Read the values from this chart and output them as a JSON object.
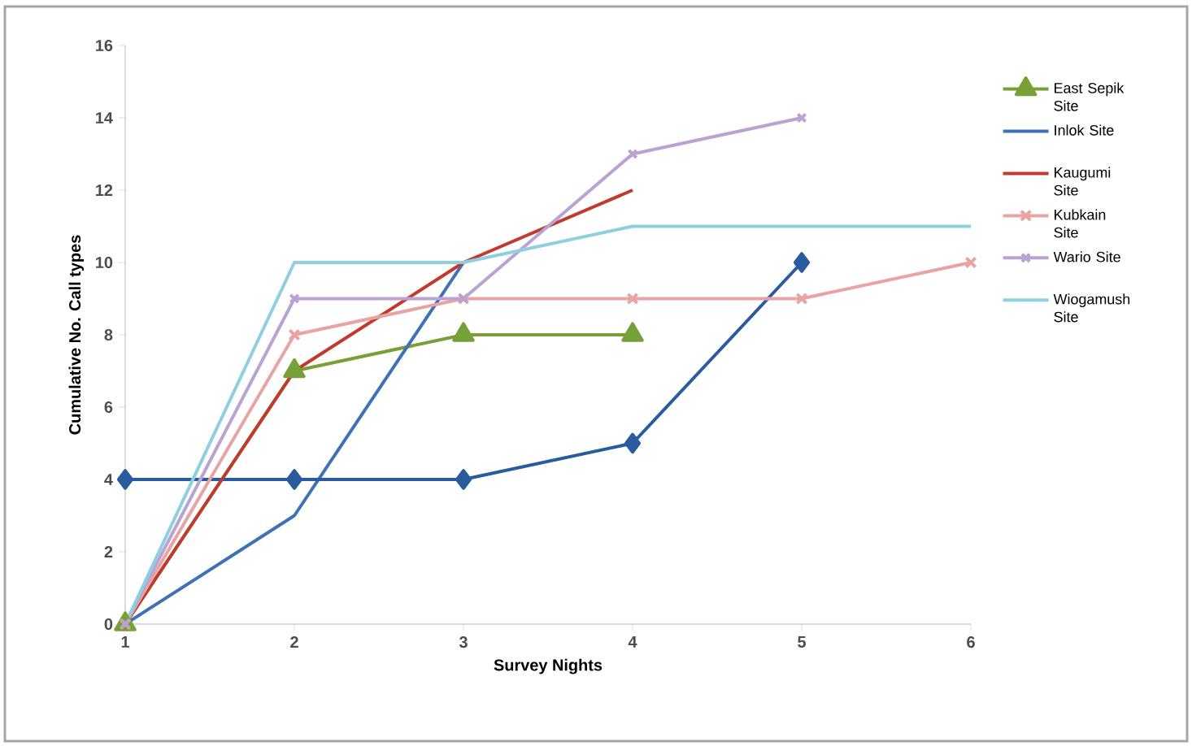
{
  "chart_data": {
    "type": "line",
    "xlabel": "Survey Nights",
    "ylabel": "Cumulative No. Call types",
    "x": [
      1,
      2,
      3,
      4,
      5,
      6
    ],
    "xlim": [
      1,
      6
    ],
    "xticks": [
      1,
      2,
      3,
      4,
      5,
      6
    ],
    "ylim": [
      0,
      16
    ],
    "yticks": [
      0,
      2,
      4,
      6,
      8,
      10,
      12,
      14,
      16
    ],
    "grid": false,
    "legend": "right",
    "line_style": "solid",
    "series": [
      {
        "name": "East Sepik Site",
        "color": "#77a038",
        "marker": "triangle",
        "values": [
          0,
          7,
          8,
          8,
          null,
          null
        ]
      },
      {
        "name": "Inlok Site",
        "color": "#3f72b5",
        "marker": "none",
        "values": [
          0,
          3,
          10,
          null,
          null,
          null
        ]
      },
      {
        "color": "#2a5b9e",
        "marker": "diamond",
        "values": [
          4,
          4,
          4,
          5,
          10,
          null
        ]
      },
      {
        "name": "Kaugumi Site",
        "color": "#c23a2e",
        "marker": "none",
        "values": [
          0,
          7,
          10,
          12,
          null,
          null
        ]
      },
      {
        "name": "Kubkain Site",
        "color": "#e8a3a3",
        "marker": "cross",
        "values": [
          0,
          8,
          9,
          9,
          9,
          10
        ]
      },
      {
        "name": "Wario Site",
        "color": "#b9a3d3",
        "marker": "cross",
        "values": [
          0,
          9,
          9,
          13,
          14,
          null
        ]
      },
      {
        "name": "Wiogamush Site",
        "color": "#8fcfe2",
        "marker": "none",
        "values": [
          0,
          10,
          10,
          11,
          11,
          11
        ]
      }
    ]
  }
}
